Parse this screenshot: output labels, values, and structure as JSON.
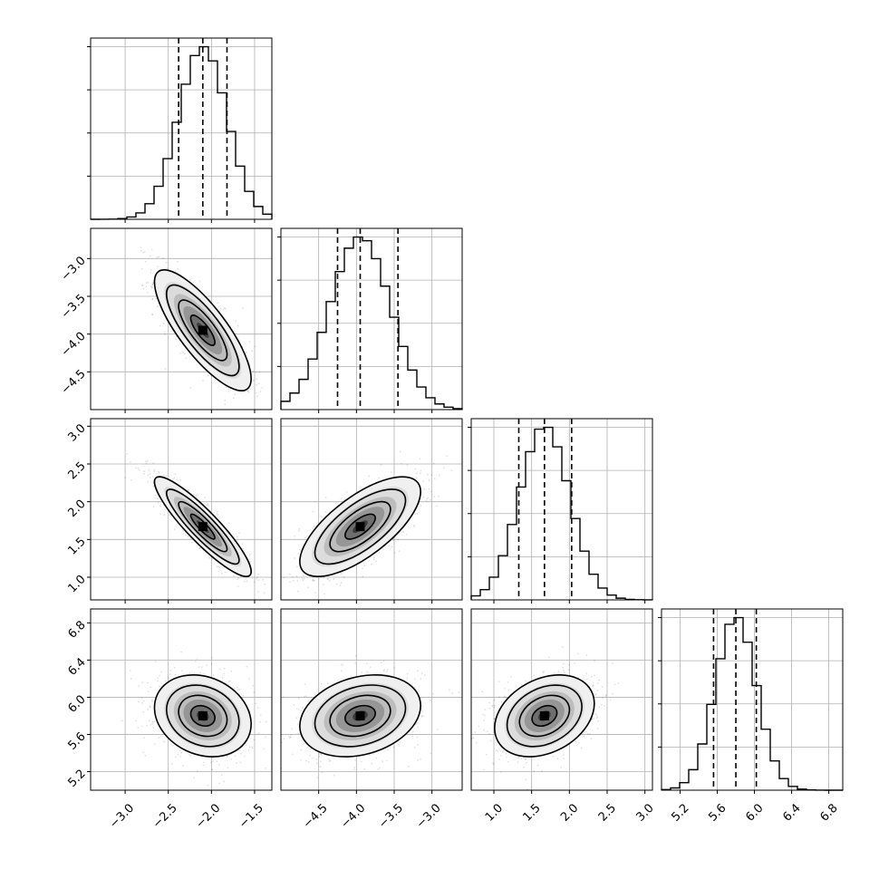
{
  "chart_data": {
    "type": "corner",
    "parameters": [
      {
        "index": 0,
        "range": [
          -3.4,
          -1.3
        ],
        "ticks": [
          -3.0,
          -2.5,
          -2.0,
          -1.5
        ],
        "tick_labels": [
          "−3.0",
          "−2.5",
          "−2.0",
          "−1.5"
        ],
        "median": -2.1,
        "sigma": 0.28,
        "quantiles": [
          -2.38,
          -2.1,
          -1.82
        ]
      },
      {
        "index": 1,
        "range": [
          -5.0,
          -2.6
        ],
        "ticks": [
          -4.5,
          -4.0,
          -3.5,
          -3.0
        ],
        "tick_labels": [
          "−4.5",
          "−4.0",
          "−3.5",
          "−3.0"
        ],
        "median": -3.95,
        "sigma": 0.4,
        "quantiles": [
          -4.25,
          -3.95,
          -3.45
        ]
      },
      {
        "index": 2,
        "range": [
          0.7,
          3.1
        ],
        "ticks": [
          1.0,
          1.5,
          2.0,
          2.5,
          3.0
        ],
        "tick_labels": [
          "1.0",
          "1.5",
          "2.0",
          "2.5",
          "3.0"
        ],
        "median": 1.67,
        "sigma": 0.33,
        "quantiles": [
          1.33,
          1.67,
          2.03
        ]
      },
      {
        "index": 3,
        "range": [
          5.0,
          6.95
        ],
        "ticks": [
          5.2,
          5.6,
          6.0,
          6.4,
          6.8
        ],
        "tick_labels": [
          "5.2",
          "5.6",
          "6.0",
          "6.4",
          "6.8"
        ],
        "median": 5.8,
        "sigma": 0.22,
        "quantiles": [
          5.56,
          5.8,
          6.02
        ]
      }
    ],
    "correlations": [
      [
        1.0,
        -0.8,
        -0.9,
        -0.2
      ],
      [
        -0.8,
        1.0,
        0.7,
        0.25
      ],
      [
        -0.9,
        0.7,
        1.0,
        0.3
      ],
      [
        -0.2,
        0.25,
        0.3,
        1.0
      ]
    ],
    "histogram_bins": 20,
    "quantile_levels": [
      0.16,
      0.5,
      0.84
    ],
    "contour_levels_sigma": [
      0.5,
      1.0,
      1.5,
      2.0
    ],
    "grid": true,
    "title": "",
    "axis_labels": []
  }
}
